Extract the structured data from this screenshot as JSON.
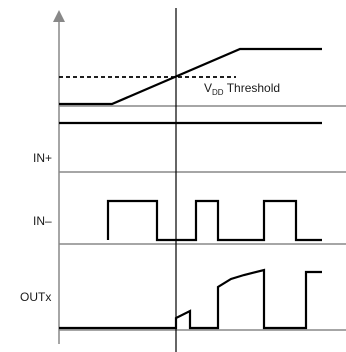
{
  "labels": {
    "vdd_main": "V",
    "vdd_sub": "DD",
    "threshold": "Threshold",
    "in_plus": "IN+",
    "in_minus": "IN–",
    "outx": "OUTx"
  },
  "colors": {
    "trace": "#000000",
    "axis": "#888888",
    "background": "#ffffff"
  }
}
